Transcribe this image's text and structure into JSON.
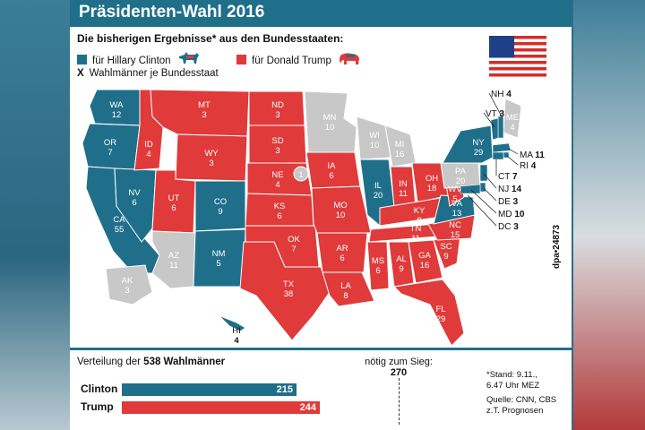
{
  "title": "Präsidenten-Wahl 2016",
  "subtitle": "Die bisherigen Ergebnisse* aus den Bundesstaaten:",
  "legend": {
    "clinton": "für Hillary Clinton",
    "trump": "für Donald Trump",
    "electors": "Wahlmänner je Bundesstaat",
    "x_marker": "X"
  },
  "colors": {
    "clinton": "#1f6f8b",
    "trump": "#e03a3a",
    "pending": "#c8c8c8",
    "title_bar": "#1f6f8b"
  },
  "states": [
    {
      "id": "WA",
      "v": "12",
      "winner": "clinton"
    },
    {
      "id": "OR",
      "v": "7",
      "winner": "clinton"
    },
    {
      "id": "CA",
      "v": "55",
      "winner": "clinton"
    },
    {
      "id": "NV",
      "v": "6",
      "winner": "clinton"
    },
    {
      "id": "ID",
      "v": "4",
      "winner": "trump"
    },
    {
      "id": "MT",
      "v": "3",
      "winner": "trump"
    },
    {
      "id": "WY",
      "v": "3",
      "winner": "trump"
    },
    {
      "id": "UT",
      "v": "6",
      "winner": "trump"
    },
    {
      "id": "AZ",
      "v": "11",
      "winner": "pending"
    },
    {
      "id": "CO",
      "v": "9",
      "winner": "clinton"
    },
    {
      "id": "NM",
      "v": "5",
      "winner": "clinton"
    },
    {
      "id": "ND",
      "v": "3",
      "winner": "trump"
    },
    {
      "id": "SD",
      "v": "3",
      "winner": "trump"
    },
    {
      "id": "NE",
      "v": "4",
      "winner": "trump"
    },
    {
      "id": "KS",
      "v": "6",
      "winner": "trump"
    },
    {
      "id": "OK",
      "v": "7",
      "winner": "trump"
    },
    {
      "id": "TX",
      "v": "38",
      "winner": "trump"
    },
    {
      "id": "MN",
      "v": "10",
      "winner": "pending"
    },
    {
      "id": "IA",
      "v": "6",
      "winner": "trump"
    },
    {
      "id": "MO",
      "v": "10",
      "winner": "trump"
    },
    {
      "id": "AR",
      "v": "6",
      "winner": "trump"
    },
    {
      "id": "LA",
      "v": "8",
      "winner": "trump"
    },
    {
      "id": "WI",
      "v": "10",
      "winner": "pending"
    },
    {
      "id": "IL",
      "v": "20",
      "winner": "clinton"
    },
    {
      "id": "MI",
      "v": "16",
      "winner": "pending"
    },
    {
      "id": "IN",
      "v": "11",
      "winner": "trump"
    },
    {
      "id": "OH",
      "v": "18",
      "winner": "trump"
    },
    {
      "id": "KY",
      "v": "8",
      "winner": "trump"
    },
    {
      "id": "TN",
      "v": "11",
      "winner": "trump"
    },
    {
      "id": "MS",
      "v": "6",
      "winner": "trump"
    },
    {
      "id": "AL",
      "v": "9",
      "winner": "trump"
    },
    {
      "id": "GA",
      "v": "16",
      "winner": "trump"
    },
    {
      "id": "FL",
      "v": "29",
      "winner": "trump"
    },
    {
      "id": "SC",
      "v": "9",
      "winner": "trump"
    },
    {
      "id": "NC",
      "v": "15",
      "winner": "trump"
    },
    {
      "id": "VA",
      "v": "13",
      "winner": "clinton"
    },
    {
      "id": "WV",
      "v": "5",
      "winner": "trump"
    },
    {
      "id": "PA",
      "v": "20",
      "winner": "pending"
    },
    {
      "id": "NY",
      "v": "29",
      "winner": "clinton"
    },
    {
      "id": "ME",
      "v": "4",
      "winner": "pending"
    },
    {
      "id": "AK",
      "v": "3",
      "winner": "pending"
    },
    {
      "id": "HI",
      "v": "4",
      "winner": "clinton"
    }
  ],
  "ne_badge": "1",
  "east_labels": [
    {
      "id": "NH",
      "v": "4"
    },
    {
      "id": "VT",
      "v": "3"
    },
    {
      "id": "MA",
      "v": "11"
    },
    {
      "id": "RI",
      "v": "4"
    },
    {
      "id": "CT",
      "v": "7"
    },
    {
      "id": "NJ",
      "v": "14"
    },
    {
      "id": "DE",
      "v": "3"
    },
    {
      "id": "MD",
      "v": "10"
    },
    {
      "id": "DC",
      "v": "3"
    }
  ],
  "credit": "dpa•24873",
  "distribution": {
    "prefix": "Verteilung der",
    "total": "538 Wahlmänner",
    "needed_label": "nötig zum Sieg:",
    "needed_value": "270"
  },
  "chart_data": {
    "type": "bar",
    "orientation": "horizontal",
    "categories": [
      "Clinton",
      "Trump"
    ],
    "values": [
      215,
      244
    ],
    "colors": [
      "#1f6f8b",
      "#e03a3a"
    ],
    "xlim": [
      0,
      538
    ],
    "threshold": 270
  },
  "source": {
    "stand": "*Stand: 9.11.,",
    "time": "6.47 Uhr MEZ",
    "quelle": "Quelle: CNN, CBS",
    "note": "z.T. Prognosen"
  }
}
